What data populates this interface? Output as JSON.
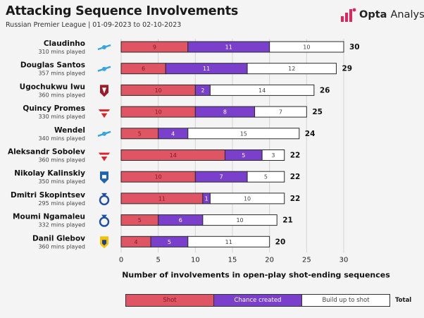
{
  "header": {
    "title": "Attacking Sequence Involvements",
    "subtitle": "Russian Premier League | 01-09-2023 to 02-10-2023",
    "brand": "Opta",
    "brand_suffix": "Analyst"
  },
  "colors": {
    "shot": "#e05563",
    "chance": "#7a40cc",
    "buildup": "#ffffff",
    "outline": "#2a2a2a",
    "grid": "#d5d5d5",
    "brand": "#e0245e"
  },
  "players": [
    {
      "name": "Claudinho",
      "mins": "310 mins played",
      "crest": "zenit-crest-icon"
    },
    {
      "name": "Douglas Santos",
      "mins": "357 mins played",
      "crest": "zenit-crest-icon"
    },
    {
      "name": "Ugochukwu Iwu",
      "mins": "360 mins played",
      "crest": "rubin-crest-icon"
    },
    {
      "name": "Quincy Promes",
      "mins": "330 mins played",
      "crest": "spartak-crest-icon"
    },
    {
      "name": "Wendel",
      "mins": "340 mins played",
      "crest": "zenit-crest-icon"
    },
    {
      "name": "Aleksandr Sobolev",
      "mins": "360 mins played",
      "crest": "spartak-crest-icon"
    },
    {
      "name": "Nikolay Kalinskiy",
      "mins": "350 mins played",
      "crest": "pari-nn-crest-icon"
    },
    {
      "name": "Dmitri Skopintsev",
      "mins": "295 mins played",
      "crest": "dynamo-crest-icon"
    },
    {
      "name": "Moumi Ngamaleu",
      "mins": "332 mins played",
      "crest": "dynamo-crest-icon"
    },
    {
      "name": "Danil Glebov",
      "mins": "360 mins played",
      "crest": "rostov-crest-icon"
    }
  ],
  "chart_data": {
    "type": "bar",
    "orientation": "horizontal",
    "stacked": true,
    "categories": [
      "Claudinho",
      "Douglas Santos",
      "Ugochukwu Iwu",
      "Quincy Promes",
      "Wendel",
      "Aleksandr Sobolev",
      "Nikolay Kalinskiy",
      "Dmitri Skopintsev",
      "Moumi Ngamaleu",
      "Danil Glebov"
    ],
    "series": [
      {
        "name": "Shot",
        "values": [
          9,
          6,
          10,
          10,
          5,
          14,
          10,
          11,
          5,
          4
        ]
      },
      {
        "name": "Chance created",
        "values": [
          11,
          11,
          2,
          8,
          4,
          5,
          7,
          1,
          6,
          5
        ]
      },
      {
        "name": "Build up to shot",
        "values": [
          10,
          12,
          14,
          7,
          15,
          3,
          5,
          10,
          10,
          11
        ]
      }
    ],
    "totals": [
      30,
      29,
      26,
      25,
      24,
      22,
      22,
      22,
      21,
      20
    ],
    "total_label": "Total",
    "xlabel": "Number of involvements in open-play shot-ending sequences",
    "xlim": [
      0,
      30
    ],
    "xticks": [
      "0",
      "5",
      "10",
      "15",
      "20",
      "25",
      "30"
    ],
    "grid": true,
    "legend_position": "bottom"
  }
}
